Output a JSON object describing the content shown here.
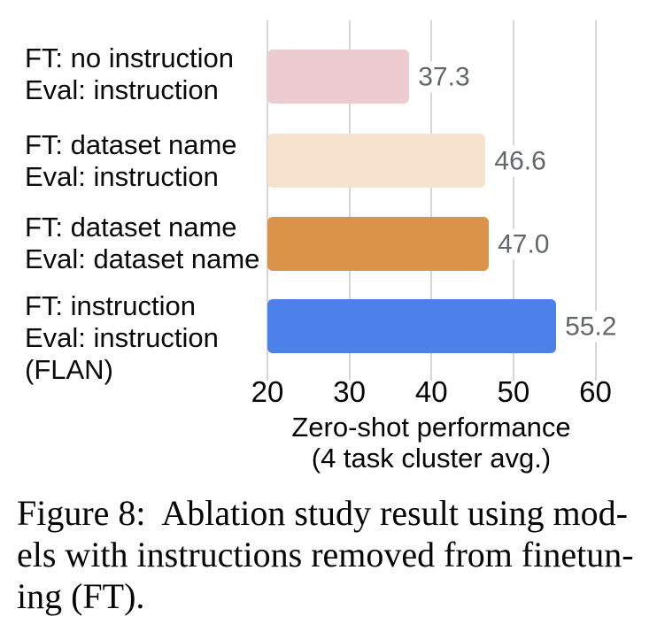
{
  "chart_data": {
    "type": "bar",
    "orientation": "horizontal",
    "xlabel_lines": [
      "Zero-shot performance",
      "(4 task cluster avg.)"
    ],
    "xlim": [
      20,
      67.5
    ],
    "x_ticks": [
      "20",
      "30",
      "40",
      "50",
      "60"
    ],
    "grid": "vertical-only",
    "legend": "none",
    "rows": [
      {
        "label_lines": [
          "FT: no instruction",
          "Eval: instruction"
        ],
        "value": 37.3,
        "value_label": "37.3",
        "color": "#ecccd1"
      },
      {
        "label_lines": [
          "FT: dataset name",
          "Eval: instruction"
        ],
        "value": 46.6,
        "value_label": "46.6",
        "color": "#f6e2cd"
      },
      {
        "label_lines": [
          "FT: dataset name",
          "Eval: dataset name"
        ],
        "value": 47.0,
        "value_label": "47.0",
        "color": "#db9249"
      },
      {
        "label_lines": [
          "FT: instruction",
          "Eval: instruction",
          "(FLAN)"
        ],
        "value": 55.2,
        "value_label": "55.2",
        "color": "#4c81e9"
      }
    ],
    "colors": {
      "gridline": "#d6d6d6",
      "value_text": "#63666b",
      "axis_text": "#050505"
    }
  },
  "caption": {
    "lines": [
      "Figure 8:  Ablation study result using mod-",
      "els with instructions removed from finetun-",
      "ing (FT)."
    ]
  }
}
